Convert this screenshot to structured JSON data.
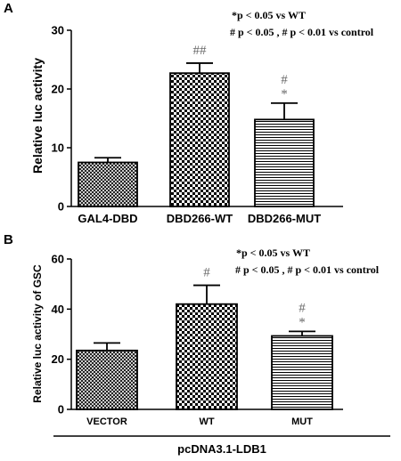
{
  "chart_data": [
    {
      "panel": "A",
      "type": "bar",
      "ylabel": "Relative luc activity",
      "ylim": [
        0,
        30
      ],
      "yticks": [
        0,
        10,
        20,
        30
      ],
      "categories": [
        "GAL4-DBD",
        "DBD266-WT",
        "DBD266-MUT"
      ],
      "values": [
        7.5,
        22.7,
        14.8
      ],
      "errors": [
        0.8,
        1.7,
        2.8
      ],
      "patterns": [
        "crosshatch",
        "checker",
        "hlines"
      ],
      "annotations": [
        "",
        "##",
        "#"
      ],
      "annotations2": [
        "",
        "",
        "*"
      ],
      "legend": [
        "*p < 0.05 vs WT",
        "# p < 0.05 , # p < 0.01 vs control"
      ]
    },
    {
      "panel": "B",
      "type": "bar",
      "ylabel": "Relative luc activity of GSC",
      "ylim": [
        0,
        60
      ],
      "yticks": [
        0,
        20,
        40,
        60
      ],
      "categories": [
        "VECTOR",
        "WT",
        "MUT"
      ],
      "values": [
        23.5,
        42.0,
        29.3
      ],
      "errors": [
        3.0,
        7.5,
        1.8
      ],
      "patterns": [
        "crosshatch",
        "checker",
        "hlines"
      ],
      "annotations": [
        "",
        "#",
        "#"
      ],
      "annotations2": [
        "",
        "",
        "*"
      ],
      "legend": [
        "*p < 0.05 vs WT",
        "# p < 0.05 , # p < 0.01 vs control"
      ],
      "group_label": "pcDNA3.1-LDB1"
    }
  ]
}
